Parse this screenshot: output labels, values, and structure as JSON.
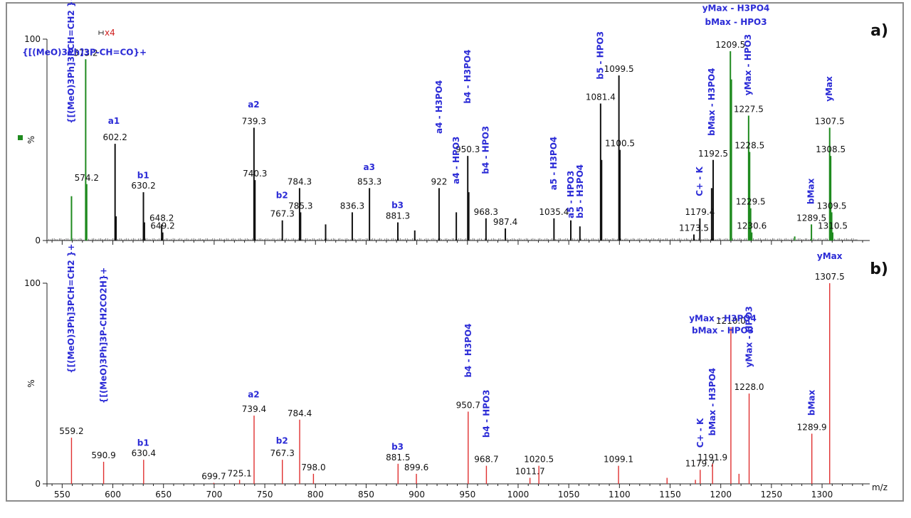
{
  "chart_data": [
    {
      "type": "spectrum",
      "panel_label": "a)",
      "ylabel": "%",
      "y_ticks": [
        "0",
        "100"
      ],
      "xlim": [
        535,
        1340
      ],
      "ylim": [
        0,
        100
      ],
      "zoom_marker": "x4",
      "series_colors": {
        "main": "#111111",
        "zoomed": "#1f8a1f"
      },
      "peaks": [
        {
          "x": 559.2,
          "y": 22,
          "color": "green"
        },
        {
          "x": 573.2,
          "y": 90,
          "color": "green",
          "label": "573.2"
        },
        {
          "x": 574.2,
          "y": 28,
          "color": "green",
          "label": "574.2"
        },
        {
          "x": 602.2,
          "y": 48,
          "label": "602.2"
        },
        {
          "x": 603.2,
          "y": 12
        },
        {
          "x": 630.2,
          "y": 24,
          "label": "630.2"
        },
        {
          "x": 631.2,
          "y": 9
        },
        {
          "x": 648.2,
          "y": 8,
          "label": "648.2"
        },
        {
          "x": 649.2,
          "y": 4,
          "label": "649.2"
        },
        {
          "x": 739.3,
          "y": 56,
          "label": "739.3"
        },
        {
          "x": 740.3,
          "y": 30,
          "label": "740.3"
        },
        {
          "x": 767.3,
          "y": 10,
          "label": "767.3"
        },
        {
          "x": 784.3,
          "y": 26,
          "label": "784.3"
        },
        {
          "x": 785.3,
          "y": 14,
          "label": "785.3"
        },
        {
          "x": 810.0,
          "y": 8
        },
        {
          "x": 836.3,
          "y": 14,
          "label": "836.3"
        },
        {
          "x": 853.3,
          "y": 26,
          "label": "853.3"
        },
        {
          "x": 881.3,
          "y": 9,
          "label": "881.3"
        },
        {
          "x": 898.0,
          "y": 5
        },
        {
          "x": 922.0,
          "y": 26,
          "label": "922"
        },
        {
          "x": 939.0,
          "y": 14
        },
        {
          "x": 950.3,
          "y": 42,
          "label": "950.3"
        },
        {
          "x": 951.3,
          "y": 24
        },
        {
          "x": 968.3,
          "y": 11,
          "label": "968.3"
        },
        {
          "x": 987.4,
          "y": 6,
          "label": "987.4"
        },
        {
          "x": 1035.4,
          "y": 11,
          "label": "1035.4"
        },
        {
          "x": 1052.0,
          "y": 10
        },
        {
          "x": 1061.0,
          "y": 7
        },
        {
          "x": 1081.4,
          "y": 68,
          "label": "1081.4"
        },
        {
          "x": 1082.4,
          "y": 40
        },
        {
          "x": 1099.5,
          "y": 82,
          "label": "1099.5"
        },
        {
          "x": 1100.5,
          "y": 45,
          "label": "1100.5"
        },
        {
          "x": 1173.5,
          "y": 3,
          "label": "1173.5"
        },
        {
          "x": 1179.4,
          "y": 11,
          "label": "1179.4"
        },
        {
          "x": 1191.0,
          "y": 26
        },
        {
          "x": 1192.5,
          "y": 40,
          "label": "1192.5"
        },
        {
          "x": 1209.5,
          "y": 94,
          "color": "green",
          "label": "1209.5"
        },
        {
          "x": 1210.5,
          "y": 80,
          "color": "green"
        },
        {
          "x": 1227.5,
          "y": 62,
          "color": "green",
          "label": "1227.5"
        },
        {
          "x": 1228.5,
          "y": 44,
          "color": "green",
          "label": "1228.5"
        },
        {
          "x": 1229.5,
          "y": 16,
          "color": "green",
          "label": "1229.5"
        },
        {
          "x": 1230.6,
          "y": 4,
          "color": "green",
          "label": "1230.6"
        },
        {
          "x": 1273.0,
          "y": 2,
          "color": "green"
        },
        {
          "x": 1289.5,
          "y": 8,
          "color": "green",
          "label": "1289.5"
        },
        {
          "x": 1307.5,
          "y": 56,
          "color": "green",
          "label": "1307.5"
        },
        {
          "x": 1308.5,
          "y": 42,
          "color": "green",
          "label": "1308.5"
        },
        {
          "x": 1309.5,
          "y": 14,
          "color": "green",
          "label": "1309.5"
        },
        {
          "x": 1310.5,
          "y": 4,
          "color": "green",
          "label": "1310.5"
        }
      ],
      "annotations": [
        {
          "text": "{[(MeO)3Ph]3P-CH=CO}+",
          "x": 572,
          "y": 92,
          "rotate": false
        },
        {
          "text": "{[(MeO)3Ph]3PCH=CH2 }+",
          "x": 559,
          "y": 58,
          "rotate": true
        },
        {
          "text": "a1",
          "x": 601,
          "y": 58,
          "rotate": false
        },
        {
          "text": "b1",
          "x": 630,
          "y": 31,
          "rotate": false
        },
        {
          "text": "a2",
          "x": 739,
          "y": 66,
          "rotate": false
        },
        {
          "text": "b2",
          "x": 767,
          "y": 21,
          "rotate": false
        },
        {
          "text": "a3",
          "x": 853,
          "y": 35,
          "rotate": false
        },
        {
          "text": "b3",
          "x": 881,
          "y": 16,
          "rotate": false
        },
        {
          "text": "a4 - H3PO4",
          "x": 922,
          "y": 53,
          "rotate": true
        },
        {
          "text": "a4 - HPO3",
          "x": 939,
          "y": 28,
          "rotate": true
        },
        {
          "text": "b4 - H3PO4",
          "x": 950,
          "y": 68,
          "rotate": true
        },
        {
          "text": "b4 - HPO3",
          "x": 968,
          "y": 33,
          "rotate": true
        },
        {
          "text": "a5 - H3PO4",
          "x": 1035,
          "y": 25,
          "rotate": true
        },
        {
          "text": "a5 - HPO3",
          "x": 1052,
          "y": 11,
          "rotate": true
        },
        {
          "text": "b5 - H3PO4",
          "x": 1061,
          "y": 11,
          "rotate": true
        },
        {
          "text": "b5 - HPO3",
          "x": 1081,
          "y": 80,
          "rotate": true
        },
        {
          "text": "C+ - K",
          "x": 1179,
          "y": 22,
          "rotate": true
        },
        {
          "text": "bMax - H3PO4",
          "x": 1191,
          "y": 52,
          "rotate": true
        },
        {
          "text": "yMax - H3PO4",
          "x": 1215,
          "y": 114,
          "rotate": false
        },
        {
          "text": "bMax - HPO3",
          "x": 1215,
          "y": 107,
          "rotate": false
        },
        {
          "text": "yMax - HPO3",
          "x": 1227,
          "y": 72,
          "rotate": true
        },
        {
          "text": "bMax",
          "x": 1289,
          "y": 18,
          "rotate": true
        },
        {
          "text": "yMax",
          "x": 1307,
          "y": 69,
          "rotate": true
        }
      ]
    },
    {
      "type": "spectrum",
      "panel_label": "b)",
      "ylabel": "%",
      "xlabel": "m/z",
      "y_ticks": [
        "0",
        "100"
      ],
      "x_ticks": [
        "550",
        "600",
        "650",
        "700",
        "750",
        "800",
        "850",
        "900",
        "950",
        "1000",
        "1050",
        "1100",
        "1150",
        "1200",
        "1250",
        "1300"
      ],
      "xlim": [
        535,
        1340
      ],
      "ylim": [
        0,
        100
      ],
      "series_colors": {
        "main": "#e03030"
      },
      "peaks": [
        {
          "x": 559.2,
          "y": 23,
          "label": "559.2"
        },
        {
          "x": 590.9,
          "y": 11,
          "label": "590.9"
        },
        {
          "x": 630.4,
          "y": 12,
          "label": "630.4"
        },
        {
          "x": 699.7,
          "y": 0.5,
          "label": "699.7"
        },
        {
          "x": 725.1,
          "y": 2,
          "label": "725.1"
        },
        {
          "x": 739.4,
          "y": 34,
          "label": "739.4"
        },
        {
          "x": 767.3,
          "y": 12,
          "label": "767.3"
        },
        {
          "x": 784.4,
          "y": 32,
          "label": "784.4"
        },
        {
          "x": 798.0,
          "y": 5,
          "label": "798.0"
        },
        {
          "x": 881.5,
          "y": 10,
          "label": "881.5"
        },
        {
          "x": 899.6,
          "y": 5,
          "label": "899.6"
        },
        {
          "x": 950.7,
          "y": 36,
          "label": "950.7"
        },
        {
          "x": 968.7,
          "y": 9,
          "label": "968.7"
        },
        {
          "x": 1011.7,
          "y": 3,
          "label": "1011.7"
        },
        {
          "x": 1020.5,
          "y": 9,
          "label": "1020.5"
        },
        {
          "x": 1099.1,
          "y": 9,
          "label": "1099.1"
        },
        {
          "x": 1147.0,
          "y": 3
        },
        {
          "x": 1175.0,
          "y": 2
        },
        {
          "x": 1179.7,
          "y": 7,
          "label": "1179.7"
        },
        {
          "x": 1191.9,
          "y": 10,
          "label": "1191.9"
        },
        {
          "x": 1210.0,
          "y": 78,
          "label": "1210.0"
        },
        {
          "x": 1218.0,
          "y": 5
        },
        {
          "x": 1228.0,
          "y": 45,
          "label": "1228.0"
        },
        {
          "x": 1289.9,
          "y": 25,
          "label": "1289.9"
        },
        {
          "x": 1307.5,
          "y": 100,
          "label": "1307.5"
        }
      ],
      "annotations": [
        {
          "text": "{[(MeO)3Ph]3PCH=CH2 }+",
          "x": 559,
          "y": 55,
          "rotate": true
        },
        {
          "text": "{[(MeO)3Ph]3P-CH2CO2H}+",
          "x": 591,
          "y": 40,
          "rotate": true
        },
        {
          "text": "b1",
          "x": 630,
          "y": 19,
          "rotate": false
        },
        {
          "text": "a2",
          "x": 739,
          "y": 43,
          "rotate": false
        },
        {
          "text": "b2",
          "x": 767,
          "y": 20,
          "rotate": false
        },
        {
          "text": "b3",
          "x": 881,
          "y": 17,
          "rotate": false
        },
        {
          "text": "b4 - H3PO4",
          "x": 950.7,
          "y": 53,
          "rotate": true
        },
        {
          "text": "b4 - HPO3",
          "x": 968.7,
          "y": 23,
          "rotate": true
        },
        {
          "text": "C+ - K",
          "x": 1179.7,
          "y": 18,
          "rotate": true
        },
        {
          "text": "bMax - H3PO4",
          "x": 1191.9,
          "y": 24,
          "rotate": true
        },
        {
          "text": "yMax - H3PO4",
          "x": 1202,
          "y": 81,
          "rotate": false
        },
        {
          "text": "bMax - HPO3",
          "x": 1202,
          "y": 75,
          "rotate": false
        },
        {
          "text": "yMax - HPO3",
          "x": 1228,
          "y": 58,
          "rotate": true
        },
        {
          "text": "bMax",
          "x": 1289.9,
          "y": 34,
          "rotate": true
        },
        {
          "text": "yMax",
          "x": 1307.5,
          "y": 112,
          "rotate": false
        }
      ]
    }
  ]
}
